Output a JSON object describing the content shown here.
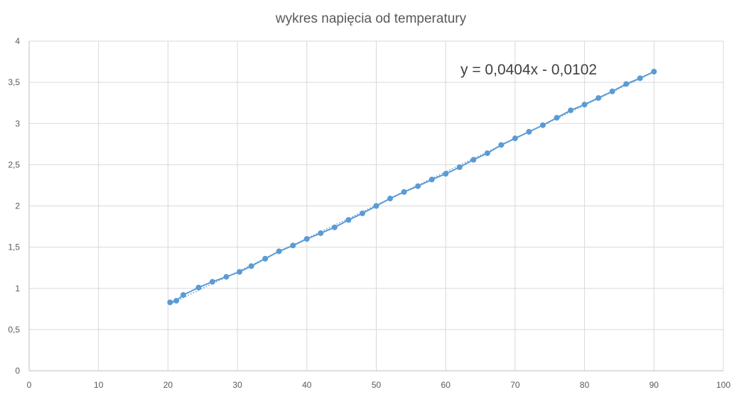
{
  "chart_data": {
    "type": "scatter",
    "title": "wykres  napięcia od temperatury",
    "xlabel": "",
    "ylabel": "",
    "xlim": [
      0,
      100
    ],
    "ylim": [
      0,
      4
    ],
    "x_ticks": [
      "0",
      "10",
      "20",
      "30",
      "40",
      "50",
      "60",
      "70",
      "80",
      "90",
      "100"
    ],
    "y_ticks": [
      "0",
      "0,5",
      "1",
      "1,5",
      "2",
      "2,5",
      "3",
      "3,5",
      "4"
    ],
    "x_tick_values": [
      0,
      10,
      20,
      30,
      40,
      50,
      60,
      70,
      80,
      90,
      100
    ],
    "y_tick_values": [
      0,
      0.5,
      1,
      1.5,
      2,
      2.5,
      3,
      3.5,
      4
    ],
    "grid": true,
    "legend": "none",
    "series": [
      {
        "color": "#5b9bd5",
        "style": "line-with-markers",
        "x": [
          20.3,
          21.2,
          22.2,
          24.4,
          26.4,
          28.4,
          30.3,
          32.0,
          34.0,
          36.0,
          38.0,
          40.0,
          42.0,
          44.0,
          46.0,
          48.0,
          50.0,
          52.0,
          54.0,
          56.0,
          58.0,
          60.0,
          62.0,
          64.0,
          66.0,
          68.0,
          70.0,
          72.0,
          74.0,
          76.0,
          78.0,
          80.0,
          82.0,
          84.0,
          86.0,
          88.0,
          90.0
        ],
        "y": [
          0.83,
          0.85,
          0.92,
          1.01,
          1.08,
          1.14,
          1.2,
          1.27,
          1.36,
          1.45,
          1.52,
          1.6,
          1.67,
          1.74,
          1.83,
          1.91,
          2.0,
          2.09,
          2.17,
          2.24,
          2.32,
          2.39,
          2.47,
          2.56,
          2.64,
          2.74,
          2.82,
          2.9,
          2.98,
          3.07,
          3.16,
          3.23,
          3.31,
          3.39,
          3.48,
          3.55,
          3.63
        ]
      }
    ],
    "trendline": {
      "type": "linear",
      "color": "#5b9bd5",
      "style": "dotted",
      "slope": 0.0404,
      "intercept": -0.0102,
      "x_range": [
        20.3,
        90.0
      ],
      "equation_label": "y = 0,0404x - 0,0102"
    }
  }
}
